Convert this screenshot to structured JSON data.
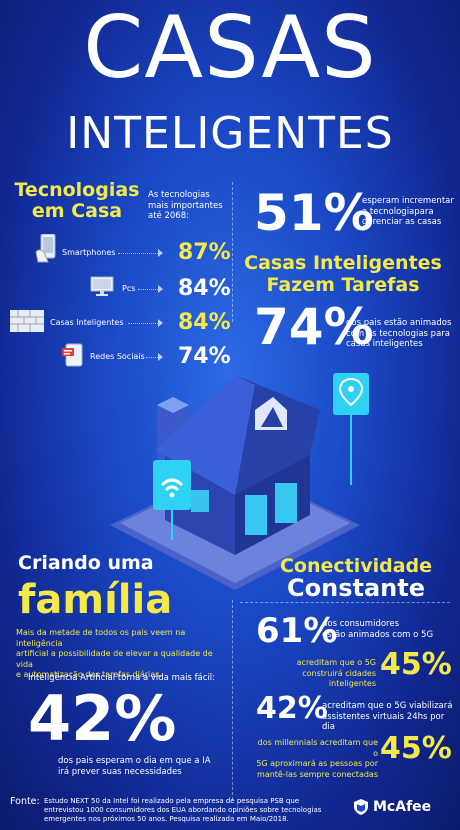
{
  "header": {
    "title": "CASAS",
    "subtitle": "INTELIGENTES"
  },
  "tecnologias": {
    "heading_line1": "Tecnologias",
    "heading_line2": "em Casa",
    "intro": [
      "As tecnologias",
      "mais importantes",
      "até 2068:"
    ],
    "items": [
      {
        "label": "Smartphones",
        "value": "87%",
        "icon": "smartphone-icon",
        "color": "#f3e94a"
      },
      {
        "label": "Pcs",
        "value": "84%",
        "icon": "monitor-icon",
        "color": "#ffffff"
      },
      {
        "label": "Casas Inteligentes",
        "value": "84%",
        "icon": "brick-wall-icon",
        "color": "#f3e94a"
      },
      {
        "label": "Redes Sociais",
        "value": "74%",
        "icon": "social-media-icon",
        "color": "#ffffff"
      }
    ]
  },
  "stat51": {
    "value": "51%",
    "text": [
      "esperam incrementar",
      "a tecnologiapara",
      "gerenciar as casas"
    ]
  },
  "tarefas": {
    "line1": "Casas Inteligentes",
    "line2": "Fazem Tarefas"
  },
  "stat74": {
    "value": "74%",
    "text": [
      "dos pais estão animados",
      "com as tecnologias para",
      "casas inteligentes"
    ]
  },
  "familia": {
    "line1": "Criando uma",
    "line2": "família",
    "paragraph": [
      "Mais da metade de todos os pais veem na inteligência",
      "artificial a possibilidade de elevar a qualidade de vida",
      "e automatização das tarefas diárias."
    ],
    "ia_label": "Inteligência Artificial torna a vida mais fácil:",
    "value": "42%",
    "bottom": [
      "dos pais esperam o dia em que a IA",
      "irá prever suas necessidades"
    ]
  },
  "conectividade": {
    "line1": "Conectividade",
    "line2": "Constante",
    "stats": [
      {
        "value": "61%",
        "text": [
          "dos consumidores",
          "estão animados com o 5G"
        ]
      },
      {
        "value": "45%",
        "text": [
          "acreditam que o 5G",
          "construirá cidades inteligentes"
        ]
      },
      {
        "value": "42%",
        "text": [
          "acreditam que o 5G viabilizará",
          "assistentes virtuais 24hs por dia"
        ]
      },
      {
        "value": "45%",
        "text": [
          "dos millennials acreditam que o",
          "5G aproximará as pessoas por",
          "mantê-las sempre conectadas"
        ]
      }
    ]
  },
  "footer": {
    "label": "Fonte:",
    "text": [
      "Estudo NEXT 50 da Intel foi realizado pela empresa de pesquisa PSB que",
      "entrevistou 1000 consumidores dos EUA abordando opiniões sobre tecnologias",
      "emergentes nos próximos 50 anos. Pesquisa realizada em Maio/2018."
    ],
    "brand": "McAfee"
  },
  "colors": {
    "accent_yellow": "#f3e94a",
    "background_blue": "#1a47c4",
    "house_cyan": "#3ad0f5"
  }
}
